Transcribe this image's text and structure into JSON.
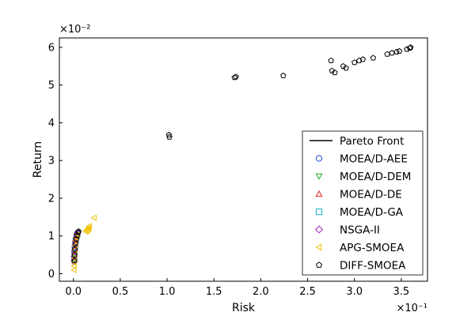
{
  "chart_data": {
    "type": "scatter",
    "xlabel": "Risk",
    "ylabel": "Return",
    "x_exponent_label": "×10⁻¹",
    "y_exponent_label": "×10⁻²",
    "xlim": [
      -0.015,
      0.378
    ],
    "ylim": [
      -0.002,
      0.0625
    ],
    "x_ticks": [
      0.0,
      0.05,
      0.1,
      0.15,
      0.2,
      0.25,
      0.3,
      0.35
    ],
    "x_tick_labels": [
      "0.0",
      "0.5",
      "1.0",
      "1.5",
      "2.0",
      "2.5",
      "3.0",
      "3.5"
    ],
    "y_ticks": [
      0.0,
      0.01,
      0.02,
      0.03,
      0.04,
      0.05,
      0.06
    ],
    "y_tick_labels": [
      "0",
      "1",
      "2",
      "3",
      "4",
      "5",
      "6"
    ],
    "grid": false,
    "legend_position": "lower-right",
    "series": [
      {
        "name": "Pareto Front",
        "kind": "line",
        "color": "#000000",
        "points": [
          [
            0.0008,
            0.0031
          ],
          [
            0.0007,
            0.0045
          ],
          [
            0.001,
            0.006
          ],
          [
            0.0016,
            0.0075
          ],
          [
            0.0024,
            0.0088
          ],
          [
            0.0032,
            0.0098
          ],
          [
            0.004,
            0.0106
          ],
          [
            0.005,
            0.0111
          ]
        ]
      },
      {
        "name": "MOEA/D-AEE",
        "kind": "scatter",
        "marker": "circle",
        "color": "#1f3fd6",
        "points": [
          [
            0.0008,
            0.0032
          ],
          [
            0.0008,
            0.0042
          ],
          [
            0.001,
            0.0055
          ],
          [
            0.0014,
            0.0068
          ],
          [
            0.002,
            0.0081
          ],
          [
            0.0026,
            0.0092
          ],
          [
            0.0033,
            0.0101
          ],
          [
            0.0041,
            0.0107
          ]
        ]
      },
      {
        "name": "MOEA/D-DEM",
        "kind": "scatter",
        "marker": "triangle-down",
        "color": "#22aa22",
        "points": [
          [
            0.0009,
            0.0035
          ],
          [
            0.0011,
            0.005
          ],
          [
            0.0015,
            0.0065
          ],
          [
            0.0021,
            0.0079
          ],
          [
            0.0028,
            0.0091
          ],
          [
            0.0036,
            0.0101
          ]
        ]
      },
      {
        "name": "MOEA/D-DE",
        "kind": "scatter",
        "marker": "triangle-up",
        "color": "#dd2222",
        "points": [
          [
            0.0008,
            0.0038
          ],
          [
            0.001,
            0.0052
          ],
          [
            0.0014,
            0.0066
          ],
          [
            0.002,
            0.0079
          ],
          [
            0.0027,
            0.009
          ],
          [
            0.0035,
            0.01
          ],
          [
            0.0043,
            0.0106
          ]
        ]
      },
      {
        "name": "MOEA/D-GA",
        "kind": "scatter",
        "marker": "square",
        "color": "#17b8c8",
        "points": [
          [
            0.0009,
            0.004
          ],
          [
            0.0012,
            0.0056
          ],
          [
            0.0017,
            0.0071
          ],
          [
            0.0024,
            0.0085
          ],
          [
            0.0032,
            0.0096
          ],
          [
            0.0041,
            0.0104
          ]
        ]
      },
      {
        "name": "NSGA-II",
        "kind": "scatter",
        "marker": "diamond",
        "color": "#a020c0",
        "points": [
          [
            0.0008,
            0.0033
          ],
          [
            0.0009,
            0.0046
          ],
          [
            0.0012,
            0.006
          ],
          [
            0.0017,
            0.0074
          ],
          [
            0.0023,
            0.0086
          ],
          [
            0.003,
            0.0096
          ],
          [
            0.0038,
            0.0104
          ],
          [
            0.0046,
            0.0109
          ]
        ]
      },
      {
        "name": "APG-SMOEA",
        "kind": "scatter",
        "marker": "triangle-left",
        "color": "#f0c000",
        "points": [
          [
            0.0005,
            0.001
          ],
          [
            0.0007,
            0.002
          ],
          [
            0.0009,
            0.003
          ],
          [
            0.0011,
            0.0041
          ],
          [
            0.0013,
            0.0052
          ],
          [
            0.0016,
            0.0063
          ],
          [
            0.002,
            0.0075
          ],
          [
            0.0025,
            0.0086
          ],
          [
            0.003,
            0.0095
          ],
          [
            0.004,
            0.0103
          ],
          [
            0.013,
            0.0112
          ],
          [
            0.0145,
            0.0117
          ],
          [
            0.0158,
            0.0121
          ],
          [
            0.017,
            0.0126
          ],
          [
            0.015,
            0.0113
          ],
          [
            0.0165,
            0.0119
          ],
          [
            0.022,
            0.0148
          ]
        ]
      },
      {
        "name": "DIFF-SMOEA",
        "kind": "scatter",
        "marker": "pentagon",
        "color": "#000000",
        "points": [
          [
            0.001,
            0.0035
          ],
          [
            0.0012,
            0.005
          ],
          [
            0.0015,
            0.0065
          ],
          [
            0.0022,
            0.008
          ],
          [
            0.003,
            0.0092
          ],
          [
            0.004,
            0.0102
          ],
          [
            0.005,
            0.011
          ],
          [
            0.0055,
            0.0112
          ],
          [
            0.102,
            0.0368
          ],
          [
            0.1025,
            0.0362
          ],
          [
            0.172,
            0.052
          ],
          [
            0.1735,
            0.0522
          ],
          [
            0.224,
            0.0525
          ],
          [
            0.275,
            0.0565
          ],
          [
            0.276,
            0.0538
          ],
          [
            0.279,
            0.0533
          ],
          [
            0.288,
            0.055
          ],
          [
            0.291,
            0.0545
          ],
          [
            0.3,
            0.056
          ],
          [
            0.305,
            0.0565
          ],
          [
            0.309,
            0.0568
          ],
          [
            0.32,
            0.0572
          ],
          [
            0.335,
            0.0582
          ],
          [
            0.34,
            0.0585
          ],
          [
            0.345,
            0.0588
          ],
          [
            0.348,
            0.059
          ],
          [
            0.356,
            0.0595
          ],
          [
            0.359,
            0.0598
          ],
          [
            0.36,
            0.06
          ]
        ]
      }
    ]
  }
}
